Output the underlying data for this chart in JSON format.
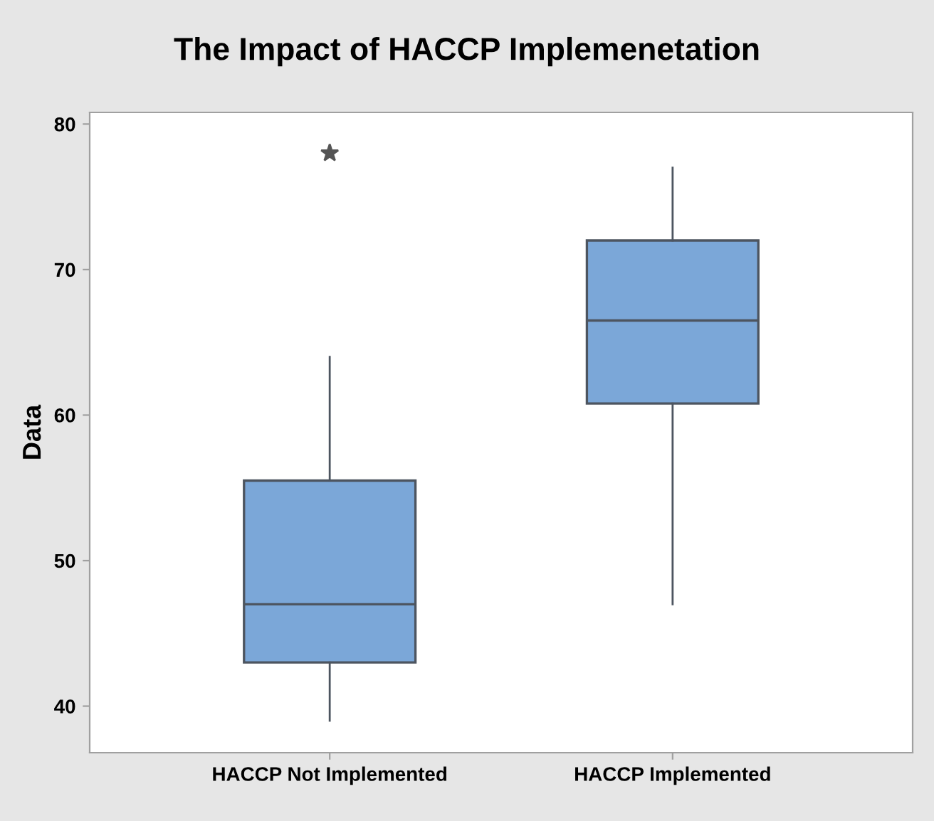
{
  "chart_data": {
    "type": "box",
    "title": "The Impact of HACCP Implemenetation",
    "ylabel": "Data",
    "categories": [
      "HACCP Not Implemented",
      "HACCP Implemented"
    ],
    "boxes": [
      {
        "low": 39,
        "q1": 43,
        "median": 47,
        "q3": 55.5,
        "high": 64,
        "outliers": [
          78
        ]
      },
      {
        "low": 47,
        "q1": 60.8,
        "median": 66.5,
        "q3": 72,
        "high": 77
      }
    ],
    "color": "#7ba7d8",
    "ylim": [
      36.8,
      80.8
    ],
    "yticks": [
      40,
      50,
      60,
      70,
      80
    ],
    "grid": false,
    "marker": "star"
  }
}
